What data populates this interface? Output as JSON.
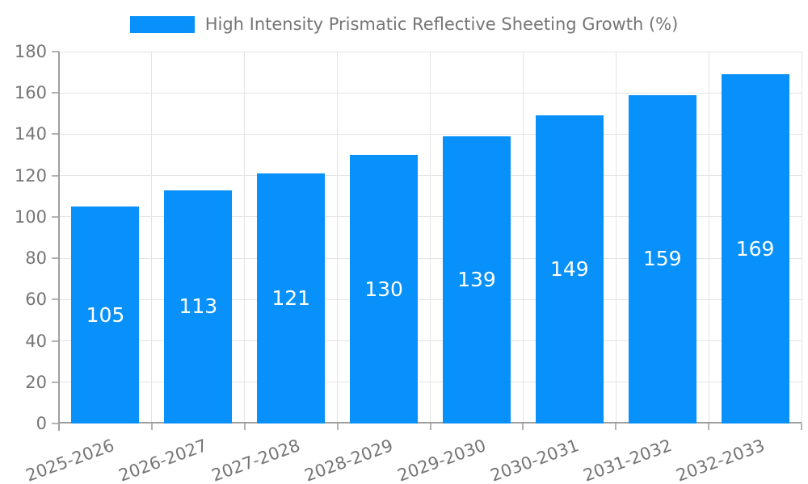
{
  "chart_data": {
    "type": "bar",
    "title": "High Intensity Prismatic Reflective Sheeting Growth (%)",
    "categories": [
      "2025-2026",
      "2026-2027",
      "2027-2028",
      "2028-2029",
      "2029-2030",
      "2030-2031",
      "2031-2032",
      "2032-2033"
    ],
    "values": [
      105,
      113,
      121,
      130,
      139,
      149,
      159,
      169
    ],
    "xlabel": "",
    "ylabel": "",
    "ylim": [
      0,
      180
    ],
    "ytick_step": 20,
    "yticks": [
      0,
      20,
      40,
      60,
      80,
      100,
      120,
      140,
      160,
      180
    ],
    "grid": true,
    "legend_position": "top",
    "value_labels": "inside-bar-centered",
    "xtick_rotation_deg": -20,
    "colors": {
      "bar": "#0891fa",
      "grid": "#e4e4e4",
      "axis": "#9e9e9e",
      "tick": "#b3b3b3",
      "text": "#757575",
      "value_label": "#ffffff",
      "background": "#ffffff"
    }
  }
}
